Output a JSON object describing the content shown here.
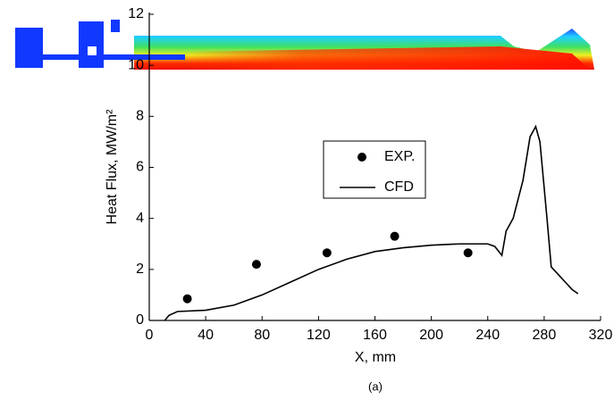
{
  "chart_data": {
    "type": "line",
    "xlabel": "X, mm",
    "ylabel": "Heat Flux, MW/m²",
    "caption": "(a)",
    "xlim": [
      0,
      320
    ],
    "xticks": [
      0,
      40,
      80,
      120,
      160,
      200,
      240,
      280,
      320
    ],
    "ylim": [
      0,
      12
    ],
    "yticks": [
      0,
      2,
      4,
      6,
      8,
      10,
      12
    ],
    "legend": "center",
    "series": [
      {
        "name": "EXP.",
        "style": "markers",
        "color": "#000000",
        "x": [
          27,
          76,
          126,
          174,
          226
        ],
        "values": [
          0.85,
          2.2,
          2.65,
          3.3,
          2.65
        ]
      },
      {
        "name": "CFD",
        "style": "line",
        "color": "#000000",
        "x": [
          11,
          14,
          20,
          40,
          60,
          80,
          100,
          120,
          140,
          160,
          180,
          200,
          220,
          240,
          245,
          250,
          253,
          258,
          265,
          270,
          274,
          277,
          282,
          285,
          290,
          300,
          304
        ],
        "values": [
          0,
          0.2,
          0.35,
          0.4,
          0.6,
          1.0,
          1.5,
          2.0,
          2.4,
          2.7,
          2.85,
          2.95,
          3.0,
          3.0,
          2.9,
          2.55,
          3.5,
          4.0,
          5.5,
          7.2,
          7.6,
          7.0,
          4.0,
          2.1,
          1.8,
          1.2,
          1.05
        ]
      }
    ]
  }
}
